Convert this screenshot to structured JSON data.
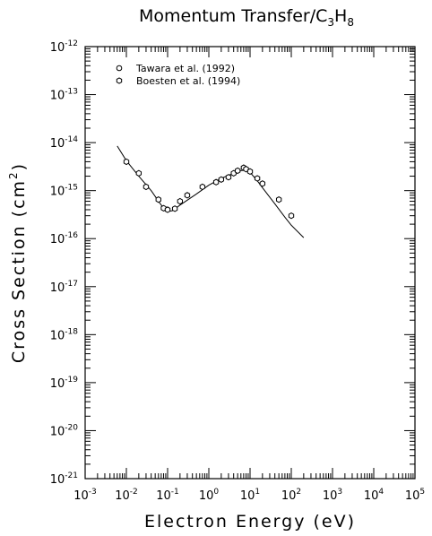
{
  "chart_data": {
    "type": "scatter",
    "title_main": "Momentum Transfer/C",
    "title_sub1": "3",
    "title_mid": "H",
    "title_sub2": "8",
    "xlabel": "Electron Energy (eV)",
    "ylabel_main": "Cross Section (cm",
    "ylabel_sup": "2",
    "ylabel_end": ")",
    "xscale": "log",
    "yscale": "log",
    "xlim": [
      0.001,
      100000
    ],
    "ylim": [
      1e-21,
      1e-12
    ],
    "x_ticks": [
      {
        "base": "10",
        "exp": "-3"
      },
      {
        "base": "10",
        "exp": "-2"
      },
      {
        "base": "10",
        "exp": "-1"
      },
      {
        "base": "10",
        "exp": "0"
      },
      {
        "base": "10",
        "exp": "1"
      },
      {
        "base": "10",
        "exp": "2"
      },
      {
        "base": "10",
        "exp": "3"
      },
      {
        "base": "10",
        "exp": "4"
      },
      {
        "base": "10",
        "exp": "5"
      }
    ],
    "y_ticks": [
      {
        "base": "10",
        "exp": "-21"
      },
      {
        "base": "10",
        "exp": "-20"
      },
      {
        "base": "10",
        "exp": "-19"
      },
      {
        "base": "10",
        "exp": "-18"
      },
      {
        "base": "10",
        "exp": "-17"
      },
      {
        "base": "10",
        "exp": "-16"
      },
      {
        "base": "10",
        "exp": "-15"
      },
      {
        "base": "10",
        "exp": "-14"
      },
      {
        "base": "10",
        "exp": "-13"
      },
      {
        "base": "10",
        "exp": "-12"
      }
    ],
    "legend_position": "top-left",
    "grid": false,
    "series": [
      {
        "name": "Tawara et al. (1992)",
        "marker": "circle",
        "style": "line",
        "x": [
          0.006,
          0.01,
          0.02,
          0.04,
          0.07,
          0.1,
          0.13,
          0.2,
          0.5,
          1,
          2,
          4,
          6,
          8,
          10,
          15,
          20,
          40,
          70,
          100,
          200
        ],
        "y": [
          8.5e-15,
          4.2e-15,
          2e-15,
          1e-15,
          5e-16,
          3.7e-16,
          3.8e-16,
          5e-16,
          8.5e-16,
          1.3e-15,
          1.8e-15,
          2.3e-15,
          2.6e-15,
          2.7e-15,
          2.4e-15,
          1.6e-15,
          1.15e-15,
          5.3e-16,
          2.8e-16,
          1.9e-16,
          1.05e-16
        ]
      },
      {
        "name": "Boesten et al. (1994)",
        "marker": "hexagon",
        "style": "markers",
        "x": [
          0.01,
          0.02,
          0.03,
          0.06,
          0.08,
          0.1,
          0.15,
          0.2,
          0.3,
          0.7,
          1.5,
          2,
          3,
          4,
          5,
          7,
          8,
          10,
          15,
          20,
          50,
          100
        ],
        "y": [
          4e-15,
          2.3e-15,
          1.2e-15,
          6.5e-16,
          4.3e-16,
          4e-16,
          4.2e-16,
          6e-16,
          8e-16,
          1.2e-15,
          1.5e-15,
          1.7e-15,
          1.9e-15,
          2.3e-15,
          2.6e-15,
          3e-15,
          2.8e-15,
          2.5e-15,
          1.8e-15,
          1.4e-15,
          6.5e-16,
          3e-16
        ]
      }
    ]
  }
}
